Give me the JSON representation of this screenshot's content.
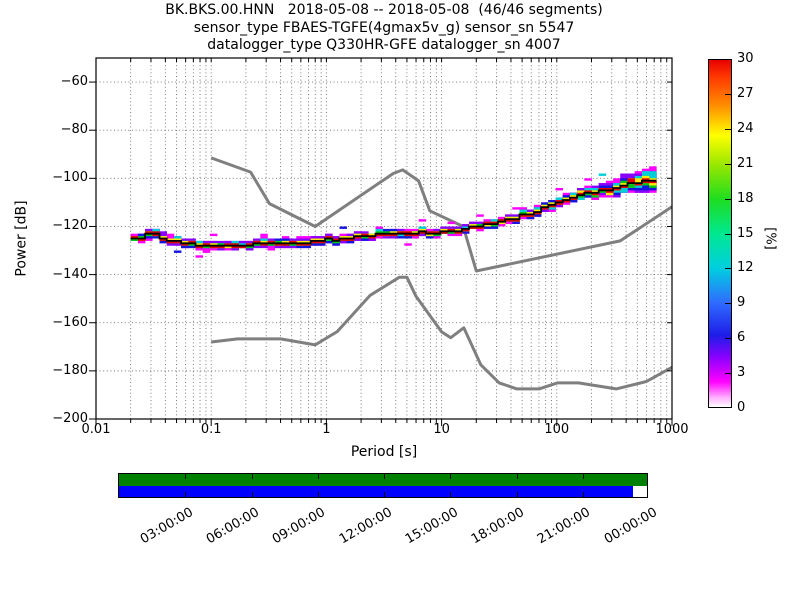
{
  "figure": {
    "title_lines": [
      "BK.BKS.00.HNN   2018-05-08 -- 2018-05-08  (46/46 segments)",
      "sensor_type FBAES-TGFE(4gmax5v_g) sensor_sn 5547",
      "datalogger_type Q330HR-GFE datalogger_sn 4007"
    ]
  },
  "axes": {
    "xlabel": "Period [s]",
    "ylabel": "Power [dB]",
    "x_tick_labels": [
      "0.01",
      "0.1",
      "1",
      "10",
      "100",
      "1000"
    ],
    "y_tick_labels": [
      "−60",
      "−80",
      "−100",
      "−120",
      "−140",
      "−160",
      "−180",
      "−200"
    ]
  },
  "colorbar": {
    "label": "[%]",
    "tick_labels": [
      "0",
      "3",
      "6",
      "9",
      "12",
      "15",
      "18",
      "21",
      "24",
      "27",
      "30"
    ]
  },
  "timeline": {
    "tick_labels": [
      "03:00:00",
      "06:00:00",
      "09:00:00",
      "12:00:00",
      "15:00:00",
      "18:00:00",
      "21:00:00",
      "00:00:00"
    ],
    "availability_color": "#008000",
    "coverage_color": "#0000ff",
    "gap_color": "#ffffff",
    "coverage_fraction": 0.974
  },
  "chart_data": {
    "type": "heatmap",
    "title": "BK.BKS.00.HNN 2018-05-08 -- 2018-05-08 (46/46 segments)",
    "xlabel": "Period [s]",
    "ylabel": "Power [dB]",
    "xscale": "log",
    "xlim": [
      0.01,
      1000
    ],
    "ylim": [
      -200,
      -50
    ],
    "grid": true,
    "x_ticks": [
      0.01,
      0.1,
      1,
      10,
      100,
      1000
    ],
    "y_ticks": [
      -200,
      -180,
      -160,
      -140,
      -120,
      -100,
      -80,
      -60
    ],
    "colorbar": {
      "label": "[%]",
      "min": 0,
      "max": 30,
      "tick_step": 3,
      "stops": [
        [
          0,
          "#ffffff"
        ],
        [
          0.8,
          "#ffb0ff"
        ],
        [
          2.2,
          "#ff00ff"
        ],
        [
          4.3,
          "#8a00ff"
        ],
        [
          6.2,
          "#1d1de8"
        ],
        [
          9,
          "#2f6bff"
        ],
        [
          12,
          "#00cfe0"
        ],
        [
          15,
          "#00e890"
        ],
        [
          18,
          "#1fdd1f"
        ],
        [
          21,
          "#9be800"
        ],
        [
          23.5,
          "#ffff00"
        ],
        [
          26,
          "#ff9000"
        ],
        [
          28.5,
          "#ff3a00"
        ],
        [
          30,
          "#e80000"
        ]
      ]
    },
    "band_period_range": [
      0.02,
      680
    ],
    "psd_mode_curve": {
      "periods": [
        0.02,
        0.025,
        0.032,
        0.045,
        0.07,
        0.1,
        0.15,
        0.25,
        0.4,
        0.6,
        0.9,
        1.3,
        2,
        3,
        4.5,
        6.5,
        9,
        13,
        18,
        26,
        40,
        60,
        90,
        130,
        200,
        300,
        450,
        600,
        680
      ],
      "db": [
        -125.5,
        -124.2,
        -123.2,
        -125.8,
        -127.6,
        -128,
        -127.9,
        -127.5,
        -126.9,
        -126.6,
        -125.8,
        -125.2,
        -124.4,
        -123.4,
        -122.4,
        -122.4,
        -122.6,
        -122,
        -120.8,
        -119.2,
        -117,
        -114.3,
        -111,
        -108.6,
        -106.2,
        -104.2,
        -102.4,
        -101.3,
        -101
      ]
    },
    "psd_band_halfwidth_db": {
      "periods": [
        0.02,
        0.03,
        0.05,
        0.1,
        0.3,
        1,
        3,
        10,
        30,
        80,
        150,
        250,
        400,
        680
      ],
      "halfwidth": [
        1.5,
        2.2,
        1.9,
        1.8,
        2.0,
        2.1,
        1.9,
        1.8,
        1.9,
        2.1,
        2.4,
        2.8,
        4.2,
        5.2
      ]
    },
    "probability_layers": [
      {
        "percent": 1,
        "color": "#ff00ff",
        "frac": 1.0,
        "bias": 0.0,
        "jit": 0.9
      },
      {
        "percent": 4,
        "color": "#8a00ff",
        "frac": 0.8,
        "bias": 0.25,
        "jit": 1.0
      },
      {
        "percent": 7,
        "color": "#1414e0",
        "frac": 0.64,
        "bias": -0.2,
        "jit": 1.0
      },
      {
        "percent": 12,
        "color": "#00cfd8",
        "frac": 0.5,
        "bias": 0.1,
        "jit": 0.9
      },
      {
        "percent": 17,
        "color": "#00c814",
        "frac": 0.38,
        "bias": -0.1,
        "jit": 0.8
      },
      {
        "percent": 22,
        "color": "#ffeb00",
        "frac": 0.27,
        "bias": 0.1,
        "jit": 0.8
      },
      {
        "percent": 29,
        "color": "#e60000",
        "frac": 0.18,
        "bias": -0.1,
        "jit": 0.6
      }
    ],
    "noise_models": {
      "nhnm": {
        "periods": [
          0.1,
          0.22,
          0.32,
          0.8,
          3.8,
          4.6,
          6.3,
          7.9,
          15.4,
          20,
          354.8,
          1000
        ],
        "db": [
          -91.5,
          -97.4,
          -110.5,
          -120,
          -98,
          -96.5,
          -101,
          -113.5,
          -120,
          -138.5,
          -126,
          -111.8
        ]
      },
      "nlnm": {
        "periods": [
          0.1,
          0.17,
          0.4,
          0.8,
          1.24,
          2.4,
          4.3,
          5,
          6,
          10,
          12,
          15.6,
          21.9,
          31.6,
          45,
          70,
          101,
          154,
          328,
          600,
          1000
        ],
        "db": [
          -168,
          -166.7,
          -166.7,
          -169.2,
          -163.7,
          -148.6,
          -141.1,
          -141.1,
          -149,
          -163.8,
          -166.2,
          -162.1,
          -177.5,
          -185,
          -187.5,
          -187.5,
          -185,
          -185,
          -187.5,
          -184.4,
          -178.5
        ]
      }
    }
  }
}
